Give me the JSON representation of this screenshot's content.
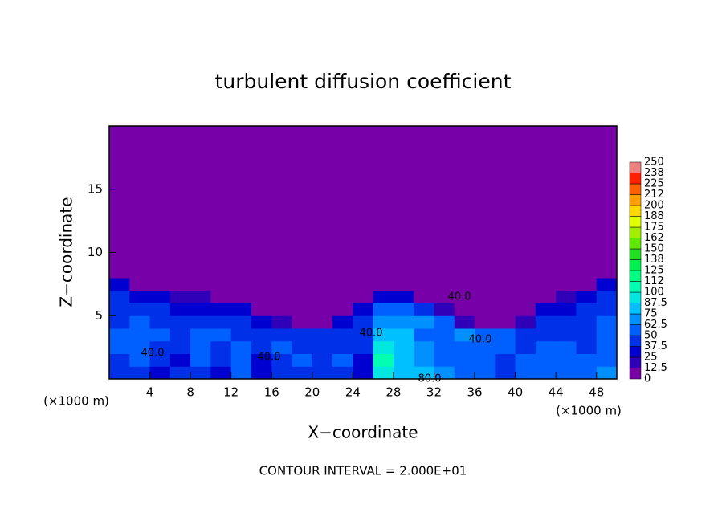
{
  "chart_data": {
    "type": "heatmap",
    "title": "turbulent diffusion coefficient",
    "xlabel": "X−coordinate",
    "ylabel": "Z−coordinate",
    "x_unit_left": "(×1000 m)",
    "x_unit_right": "(×1000 m)",
    "footer": "CONTOUR INTERVAL = 2.000E+01",
    "xlim": [
      0,
      50
    ],
    "ylim": [
      0,
      20
    ],
    "xticks": [
      4,
      8,
      12,
      16,
      20,
      24,
      28,
      32,
      36,
      40,
      44,
      48
    ],
    "yticks": [
      5,
      10,
      15
    ],
    "x": [
      1,
      3,
      5,
      7,
      9,
      11,
      13,
      15,
      17,
      19,
      21,
      23,
      25,
      27,
      29,
      31,
      33,
      35,
      37,
      39,
      41,
      43,
      45,
      47,
      49
    ],
    "z": [
      0.5,
      1.5,
      2.5,
      3.5,
      4.5,
      5.5,
      6.5,
      7.5,
      8.5,
      9.5
    ],
    "values": [
      [
        40,
        45,
        35,
        40,
        45,
        30,
        50,
        25,
        40,
        45,
        40,
        45,
        30,
        95,
        80,
        75,
        70,
        55,
        60,
        45,
        50,
        60,
        55,
        50,
        65
      ],
      [
        45,
        50,
        40,
        35,
        50,
        40,
        55,
        30,
        45,
        50,
        40,
        50,
        35,
        100,
        75,
        70,
        60,
        55,
        55,
        45,
        50,
        55,
        50,
        50,
        60
      ],
      [
        50,
        55,
        45,
        40,
        55,
        45,
        50,
        40,
        50,
        45,
        40,
        45,
        40,
        90,
        80,
        65,
        55,
        50,
        55,
        50,
        45,
        50,
        50,
        45,
        55
      ],
      [
        50,
        55,
        50,
        45,
        50,
        55,
        45,
        45,
        45,
        40,
        45,
        40,
        45,
        80,
        75,
        60,
        60,
        65,
        50,
        50,
        45,
        45,
        45,
        45,
        50
      ],
      [
        45,
        50,
        45,
        40,
        45,
        40,
        40,
        35,
        20,
        10,
        10,
        30,
        40,
        70,
        70,
        65,
        55,
        20,
        10,
        10,
        20,
        40,
        40,
        45,
        50
      ],
      [
        45,
        45,
        40,
        35,
        35,
        35,
        25,
        10,
        0,
        0,
        0,
        0,
        30,
        55,
        55,
        45,
        15,
        0,
        0,
        0,
        0,
        25,
        35,
        40,
        45
      ],
      [
        40,
        35,
        30,
        15,
        15,
        10,
        0,
        0,
        0,
        0,
        0,
        0,
        5,
        30,
        30,
        10,
        0,
        0,
        0,
        0,
        0,
        0,
        20,
        35,
        40
      ],
      [
        30,
        10,
        0,
        0,
        0,
        0,
        0,
        0,
        0,
        0,
        0,
        0,
        0,
        0,
        0,
        0,
        0,
        0,
        0,
        0,
        0,
        0,
        0,
        10,
        30
      ],
      [
        10,
        0,
        0,
        0,
        0,
        0,
        0,
        0,
        0,
        0,
        0,
        0,
        0,
        0,
        0,
        0,
        0,
        0,
        0,
        0,
        0,
        0,
        0,
        0,
        10
      ],
      [
        0,
        0,
        0,
        0,
        0,
        0,
        0,
        0,
        0,
        0,
        0,
        0,
        0,
        0,
        0,
        0,
        0,
        0,
        0,
        0,
        0,
        0,
        0,
        0,
        0
      ]
    ],
    "contour_labels": {
      "values": [
        40,
        40,
        40,
        40,
        40,
        80
      ],
      "value_labels": [
        "40.0",
        "40.0",
        "40.0",
        "40.0",
        "40.0",
        "80.0"
      ]
    },
    "colorbar": {
      "levels": [
        0,
        12.5,
        25,
        37.5,
        50,
        62.5,
        75,
        87.5,
        100,
        {
          "value": 112.5,
          "label": "112"
        },
        125,
        {
          "value": 137.5,
          "label": "138"
        },
        150,
        {
          "value": 162.5,
          "label": "162"
        },
        175,
        {
          "value": 187.5,
          "label": "188"
        },
        200,
        {
          "value": 212.5,
          "label": "212"
        },
        225,
        {
          "value": 237.5,
          "label": "238"
        },
        250
      ],
      "colors": [
        "#7800a8",
        "#3000b8",
        "#0000d0",
        "#0030e8",
        "#0060ff",
        "#0090ff",
        "#00c0ff",
        "#00e8e0",
        "#00ffb0",
        "#00ff80",
        "#00f050",
        "#20e020",
        "#60e800",
        "#a0f000",
        "#e0ff00",
        "#ffd800",
        "#ffa000",
        "#ff6000",
        "#ff2000",
        "#f08080"
      ]
    }
  }
}
